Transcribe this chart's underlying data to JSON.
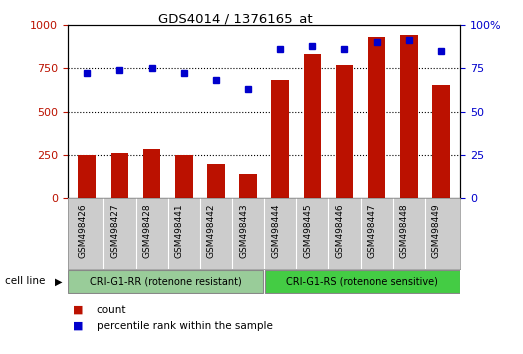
{
  "title": "GDS4014 / 1376165_at",
  "samples": [
    "GSM498426",
    "GSM498427",
    "GSM498428",
    "GSM498441",
    "GSM498442",
    "GSM498443",
    "GSM498444",
    "GSM498445",
    "GSM498446",
    "GSM498447",
    "GSM498448",
    "GSM498449"
  ],
  "counts": [
    252,
    260,
    282,
    252,
    200,
    142,
    682,
    832,
    770,
    930,
    942,
    650
  ],
  "percentiles": [
    72,
    74,
    75,
    72,
    68,
    63,
    86,
    88,
    86,
    90,
    91,
    85
  ],
  "bar_color": "#bb1100",
  "dot_color": "#0000cc",
  "group1_label": "CRI-G1-RR (rotenone resistant)",
  "group2_label": "CRI-G1-RS (rotenone sensitive)",
  "group1_color": "#99cc99",
  "group2_color": "#44cc44",
  "cell_line_label": "cell line",
  "legend_count": "count",
  "legend_pct": "percentile rank within the sample",
  "ylim_left": [
    0,
    1000
  ],
  "ylim_right": [
    0,
    100
  ],
  "yticks_left": [
    0,
    250,
    500,
    750,
    1000
  ],
  "ytick_labels_left": [
    "0",
    "250",
    "500",
    "750",
    "1000"
  ],
  "yticks_right": [
    0,
    25,
    50,
    75,
    100
  ],
  "ytick_labels_right": [
    "0",
    "25",
    "50",
    "75",
    "100%"
  ],
  "group1_count": 6,
  "group2_count": 6,
  "background_color": "#ffffff",
  "plot_bg_color": "#ffffff",
  "tick_area_bg": "#cccccc"
}
